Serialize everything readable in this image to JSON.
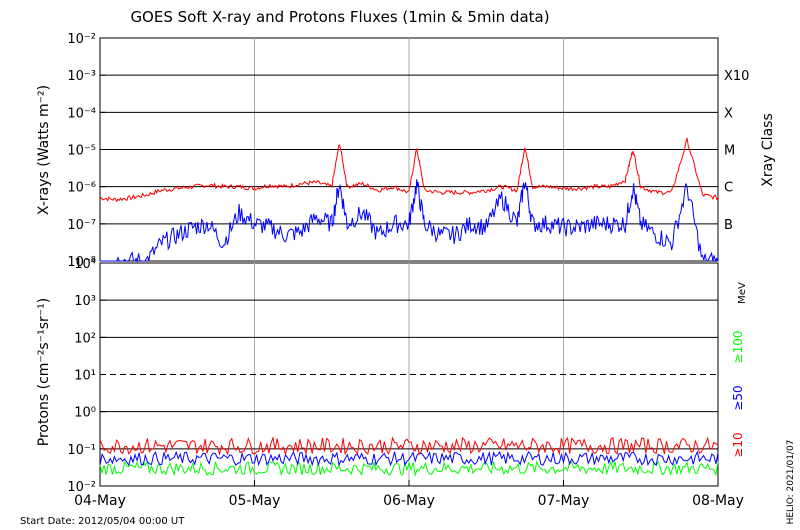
{
  "title": "GOES Soft X-ray and Protons Fluxes   (1min & 5min data)",
  "start_date": "Start Date: 2012/05/04 00:00 UT",
  "credit": "HELIO: 2021/01/07",
  "colors": {
    "xray_long": "#ff0000",
    "xray_short": "#0000ff",
    "proton_10": "#ff0000",
    "proton_50": "#0000ff",
    "proton_100": "#00ff00",
    "grid": "#000000",
    "day_lines": "#aaaaaa"
  },
  "chart_data": [
    {
      "type": "line",
      "panel": "X-rays",
      "ylabel": "X-rays (Watts m⁻²)",
      "right_label": "Xray Class",
      "yscale": "log",
      "ylim": [
        1e-08,
        0.01
      ],
      "ytick_labels": [
        "10⁻⁸",
        "10⁻⁷",
        "10⁻⁶",
        "10⁻⁵",
        "10⁻⁴",
        "10⁻³",
        "10⁻²"
      ],
      "class_labels": [
        {
          "label": "B",
          "value": 1e-07
        },
        {
          "label": "C",
          "value": 1e-06
        },
        {
          "label": "M",
          "value": 1e-05
        },
        {
          "label": "X",
          "value": 0.0001
        },
        {
          "label": "X10",
          "value": 0.001
        }
      ],
      "x_days": [
        "04-May",
        "05-May",
        "06-May",
        "07-May",
        "08-May"
      ],
      "series": [
        {
          "color": "red",
          "x": [
            0.0,
            0.1,
            0.2,
            0.3,
            0.4,
            0.5,
            0.6,
            0.7,
            0.8,
            0.9,
            1.0,
            1.1,
            1.2,
            1.3,
            1.4,
            1.5,
            1.55,
            1.6,
            1.7,
            1.8,
            1.9,
            2.0,
            2.05,
            2.1,
            2.2,
            2.3,
            2.4,
            2.5,
            2.6,
            2.7,
            2.75,
            2.8,
            2.9,
            3.0,
            3.1,
            3.2,
            3.3,
            3.4,
            3.45,
            3.5,
            3.6,
            3.7,
            3.8,
            3.9,
            4.0
          ],
          "y": [
            5e-07,
            4.5e-07,
            5e-07,
            6e-07,
            8e-07,
            9e-07,
            1e-06,
            1.1e-06,
            1e-06,
            1e-06,
            9e-07,
            1.1e-06,
            1e-06,
            1.2e-06,
            1.3e-06,
            1e-06,
            1.5e-05,
            1e-06,
            1.2e-06,
            8e-07,
            1e-06,
            7e-07,
            1.1e-05,
            8e-07,
            7e-07,
            7e-07,
            7e-07,
            8e-07,
            1e-06,
            8e-07,
            1.2e-05,
            1e-06,
            1e-06,
            9e-07,
            9e-07,
            1e-06,
            1e-06,
            1.5e-06,
            1e-05,
            1e-06,
            7e-07,
            7e-07,
            1.8e-05,
            6e-07,
            5e-07
          ]
        },
        {
          "color": "blue",
          "x": [
            0.0,
            0.1,
            0.2,
            0.3,
            0.4,
            0.5,
            0.6,
            0.7,
            0.8,
            0.9,
            1.0,
            1.1,
            1.2,
            1.3,
            1.4,
            1.5,
            1.55,
            1.6,
            1.7,
            1.8,
            1.9,
            2.0,
            2.05,
            2.1,
            2.2,
            2.3,
            2.4,
            2.5,
            2.6,
            2.7,
            2.75,
            2.8,
            2.9,
            3.0,
            3.1,
            3.2,
            3.3,
            3.4,
            3.45,
            3.5,
            3.6,
            3.7,
            3.8,
            3.9,
            4.0
          ],
          "y": [
            1e-08,
            1e-08,
            1e-08,
            1e-08,
            3e-08,
            5e-08,
            8e-08,
            1e-07,
            3e-08,
            2e-07,
            1e-07,
            8e-08,
            5e-08,
            6e-08,
            1.5e-07,
            1e-07,
            1.2e-06,
            1e-07,
            2e-07,
            5e-08,
            1e-07,
            1e-07,
            1.2e-06,
            1e-07,
            5e-08,
            5e-08,
            1e-07,
            8e-08,
            5e-07,
            1e-07,
            1.5e-06,
            1e-07,
            1e-07,
            8e-08,
            8e-08,
            1e-07,
            1e-07,
            1e-07,
            1e-06,
            1e-07,
            5e-08,
            3e-08,
            1e-06,
            1e-08,
            1e-08
          ]
        }
      ]
    },
    {
      "type": "line",
      "panel": "Protons",
      "ylabel": "Protons (cm⁻²s⁻¹sr⁻¹)",
      "yscale": "log",
      "ylim": [
        0.01,
        10000
      ],
      "ytick_labels": [
        "10⁻²",
        "10⁻¹",
        "10⁰",
        "10¹",
        "10²",
        "10³",
        "10⁴"
      ],
      "threshold": 10,
      "unit_label": "MeV",
      "x_days": [
        "04-May",
        "05-May",
        "06-May",
        "07-May",
        "08-May"
      ],
      "series": [
        {
          "name": "≥10",
          "color": "red",
          "level": 0.12
        },
        {
          "name": "≥50",
          "color": "blue",
          "level": 0.055
        },
        {
          "name": "≥100",
          "color": "green",
          "level": 0.03
        }
      ]
    }
  ]
}
